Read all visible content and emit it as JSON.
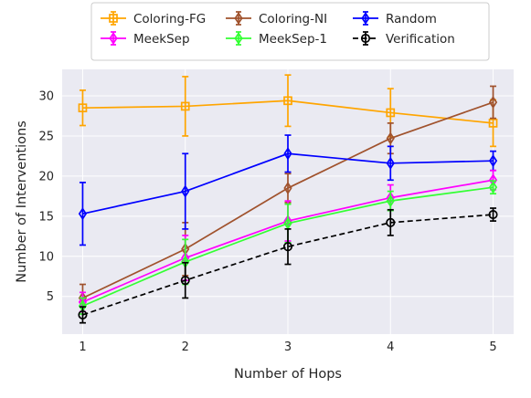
{
  "chart_data": {
    "type": "line",
    "xlabel": "Number of Hops",
    "ylabel": "Number of Interventions",
    "x": [
      1,
      2,
      3,
      4,
      5
    ],
    "xlim": [
      0.8,
      5.2
    ],
    "ylim": [
      0.3,
      33.3
    ],
    "xticks": [
      1,
      2,
      3,
      4,
      5
    ],
    "yticks": [
      5,
      10,
      15,
      20,
      25,
      30
    ],
    "grid": true,
    "legend_position": "top-center",
    "series": [
      {
        "name": "Coloring-FG",
        "color": "#ffa500",
        "marker": "square",
        "dash": "solid",
        "values": [
          28.5,
          28.7,
          29.4,
          27.9,
          26.6
        ],
        "errors": [
          2.2,
          3.7,
          3.2,
          3.0,
          2.9
        ]
      },
      {
        "name": "Coloring-NI",
        "color": "#a0522d",
        "marker": "thin-diamond",
        "dash": "solid",
        "values": [
          4.8,
          10.9,
          18.5,
          24.7,
          29.2
        ],
        "errors": [
          1.7,
          3.3,
          1.8,
          1.9,
          2.0
        ]
      },
      {
        "name": "Random",
        "color": "#0000ff",
        "marker": "thin-diamond",
        "dash": "solid",
        "values": [
          15.3,
          18.1,
          22.8,
          21.6,
          21.9
        ],
        "errors": [
          3.9,
          4.7,
          2.3,
          2.1,
          1.2
        ]
      },
      {
        "name": "MeekSep",
        "color": "#ff00ff",
        "marker": "thin-diamond",
        "dash": "solid",
        "values": [
          4.3,
          9.8,
          14.4,
          17.3,
          19.5
        ],
        "errors": [
          1.2,
          2.8,
          2.5,
          1.6,
          1.2
        ]
      },
      {
        "name": "MeekSep-1",
        "color": "#33ff33",
        "marker": "thin-diamond",
        "dash": "solid",
        "values": [
          3.8,
          9.3,
          14.1,
          16.9,
          18.6
        ],
        "errors": [
          1.0,
          2.8,
          2.4,
          1.2,
          0.8
        ]
      },
      {
        "name": "Verification",
        "color": "#000000",
        "marker": "circle",
        "dash": "dashed",
        "values": [
          2.7,
          7.0,
          11.2,
          14.2,
          15.2
        ],
        "errors": [
          1.0,
          2.2,
          2.2,
          1.6,
          0.8
        ]
      }
    ]
  }
}
